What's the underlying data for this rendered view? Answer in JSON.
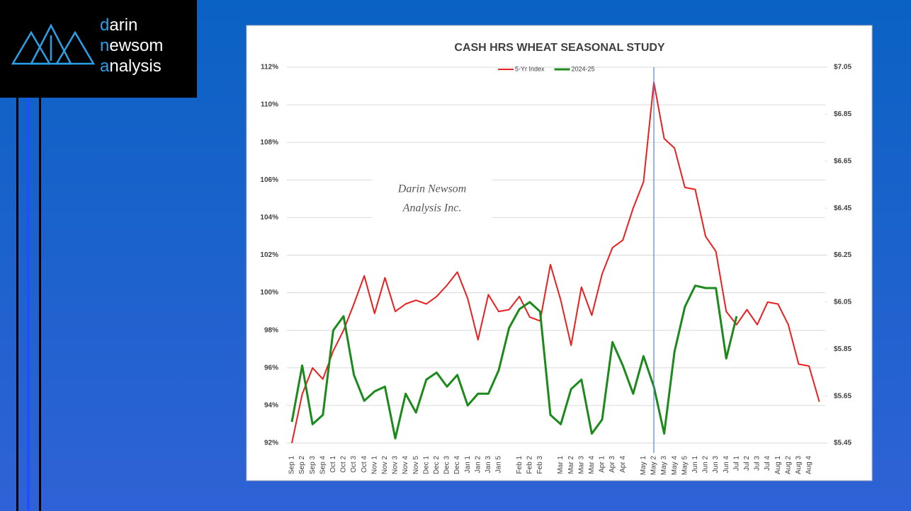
{
  "logo": [
    "darin",
    "newsom",
    "analysis"
  ],
  "chart_data": {
    "type": "line",
    "title": "CASH HRS WHEAT SEASONAL STUDY",
    "annotation": [
      "Darin Newsom",
      "Analysis Inc."
    ],
    "categories": [
      "Sep 1",
      "Sep 2",
      "Sep 3",
      "Sep 4",
      "Oct 1",
      "Oct 2",
      "Oct 3",
      "Oct 4",
      "Nov 1",
      "Nov 2",
      "Nov 3",
      "Nov 4",
      "Nov 5",
      "Dec 1",
      "Dec 2",
      "Dec 3",
      "Dec 4",
      "Jan 1",
      "Jan 2",
      "Jan 3",
      "Jan 5",
      null,
      "Feb 1",
      "Feb 2",
      "Feb 3",
      null,
      "Mar 1",
      "Mar 2",
      "Mar 3",
      "Mar 4",
      "Apr 1",
      "Apr 3",
      "Apr 4",
      null,
      "May 1",
      "May 2",
      "May 3",
      "May 4",
      "May 5",
      "Jun 1",
      "Jun 2",
      "Jun 3",
      "Jun 4",
      "Jul 1",
      "Jul 2",
      "Jul 3",
      "Jul 4",
      "Aug 1",
      "Aug 2",
      "Aug 3",
      "Aug 4",
      null
    ],
    "series": [
      {
        "name": "5-Yr Index",
        "color": "#e8201f",
        "axis": "y",
        "values": [
          92.0,
          94.6,
          96.0,
          95.4,
          96.9,
          98.0,
          99.4,
          100.9,
          98.9,
          100.8,
          99.0,
          99.4,
          99.6,
          99.4,
          99.8,
          100.4,
          101.1,
          99.7,
          97.5,
          99.9,
          99.0,
          99.1,
          99.8,
          98.7,
          98.5,
          101.5,
          99.6,
          97.2,
          100.3,
          98.8,
          101.0,
          102.4,
          102.8,
          104.5,
          105.9,
          111.2,
          108.2,
          107.7,
          105.6,
          105.5,
          103.0,
          102.2,
          99.0,
          98.3,
          99.1,
          98.3,
          99.5,
          99.4,
          98.3,
          96.2,
          96.1,
          94.2
        ]
      },
      {
        "name": "2024-25",
        "color": "#1b8a1b",
        "axis": "y2",
        "values": [
          5.54,
          5.78,
          5.53,
          5.57,
          5.93,
          5.99,
          5.74,
          5.63,
          5.67,
          5.69,
          5.47,
          5.66,
          5.58,
          5.72,
          5.75,
          5.69,
          5.74,
          5.61,
          5.66,
          5.66,
          5.76,
          5.94,
          6.02,
          6.05,
          6.01,
          5.57,
          5.53,
          5.68,
          5.72,
          5.49,
          5.55,
          5.88,
          5.78,
          5.66,
          5.82,
          5.69,
          5.49,
          5.84,
          6.03,
          6.12,
          6.11,
          6.11,
          5.81,
          5.99,
          null,
          null,
          null,
          null,
          null,
          null,
          null,
          null
        ]
      }
    ],
    "ylim": [
      92,
      112
    ],
    "yticks": [
      {
        "value": 92,
        "label": "92%"
      },
      {
        "value": 94,
        "label": "94%"
      },
      {
        "value": 96,
        "label": "96%"
      },
      {
        "value": 98,
        "label": "98%"
      },
      {
        "value": 100,
        "label": "100%"
      },
      {
        "value": 102,
        "label": "102%"
      },
      {
        "value": 104,
        "label": "104%"
      },
      {
        "value": 106,
        "label": "106%"
      },
      {
        "value": 108,
        "label": "108%"
      },
      {
        "value": 110,
        "label": "110%"
      },
      {
        "value": 112,
        "label": "112%"
      }
    ],
    "y2lim": [
      5.45,
      7.05
    ],
    "y2ticks": [
      {
        "value": 5.45,
        "label": "$5.45"
      },
      {
        "value": 5.65,
        "label": "$5.65"
      },
      {
        "value": 5.85,
        "label": "$5.85"
      },
      {
        "value": 6.05,
        "label": "$6.05"
      },
      {
        "value": 6.25,
        "label": "$6.25"
      },
      {
        "value": 6.45,
        "label": "$6.45"
      },
      {
        "value": 6.65,
        "label": "$6.65"
      },
      {
        "value": 6.85,
        "label": "$6.85"
      },
      {
        "value": 7.05,
        "label": "$7.05"
      }
    ],
    "grid": true,
    "legend": "top"
  }
}
